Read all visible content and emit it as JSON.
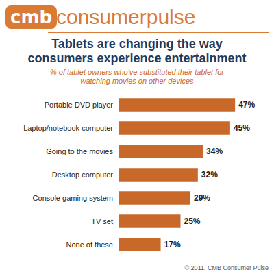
{
  "header": {
    "logo": "cmb",
    "brand": "consumerpulse"
  },
  "chart_data": {
    "type": "bar",
    "title": "Tablets are changing the way consumers experience entertainment",
    "subtitle": "% of tablet owners who've substituted their tablet for watching movies on other devices",
    "categories": [
      "Portable DVD player",
      "Laptop/notebook computer",
      "Going to the movies",
      "Desktop computer",
      "Console gaming system",
      "TV set",
      "None of these"
    ],
    "values": [
      47,
      45,
      34,
      32,
      29,
      25,
      17
    ],
    "value_labels": [
      "47%",
      "45%",
      "34%",
      "32%",
      "29%",
      "25%",
      "17%"
    ],
    "color": "#c8692a",
    "orientation": "horizontal",
    "data_labels": true,
    "tick_labels": "y",
    "grid": false,
    "source": "© 2011, CMB Consumer Pulse"
  }
}
